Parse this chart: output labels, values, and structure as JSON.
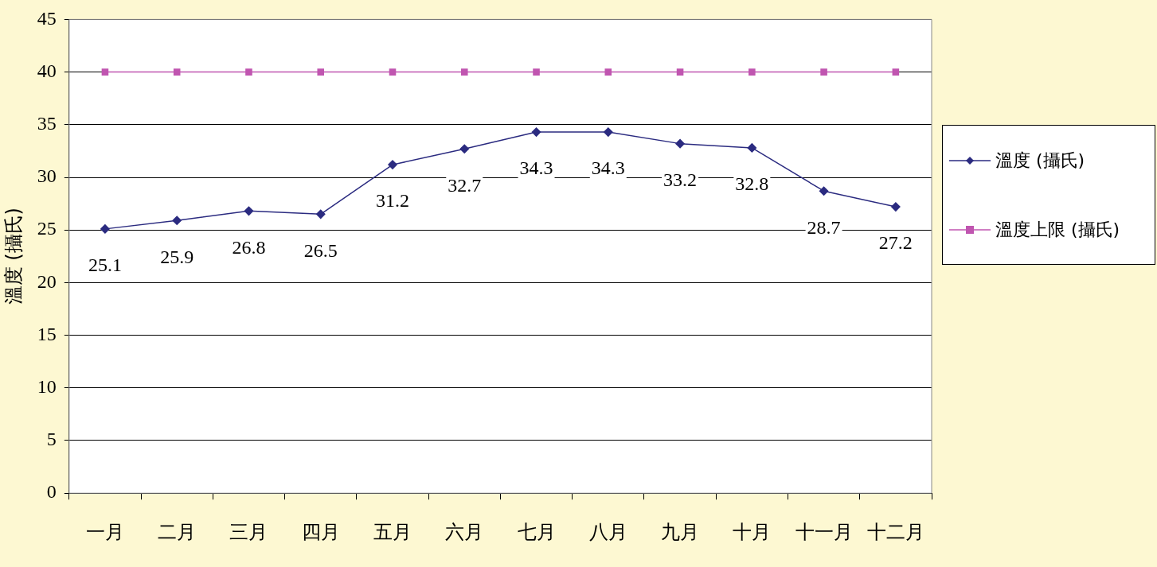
{
  "chart_data": {
    "type": "line",
    "ylabel": "溫度 (攝氏)",
    "categories": [
      "一月",
      "二月",
      "三月",
      "四月",
      "五月",
      "六月",
      "七月",
      "八月",
      "九月",
      "十月",
      "十一月",
      "十二月"
    ],
    "series": [
      {
        "name": "溫度 (攝氏)",
        "color": "#2b2b80",
        "values": [
          25.1,
          25.9,
          26.8,
          26.5,
          31.2,
          32.7,
          34.3,
          34.3,
          33.2,
          32.8,
          28.7,
          27.2
        ],
        "marker": "diamond",
        "value_labels": [
          "25.1",
          "25.9",
          "26.8",
          "26.5",
          "31.2",
          "32.7",
          "34.3",
          "34.3",
          "33.2",
          "32.8",
          "28.7",
          "27.2"
        ]
      },
      {
        "name": "溫度上限 (攝氏)",
        "color": "#c055b0",
        "values": [
          40,
          40,
          40,
          40,
          40,
          40,
          40,
          40,
          40,
          40,
          40,
          40
        ],
        "marker": "square"
      }
    ],
    "ylim": [
      0,
      45
    ],
    "yticks": [
      0,
      5,
      10,
      15,
      20,
      25,
      30,
      35,
      40,
      45
    ],
    "grid": "y",
    "legend": "right",
    "line_style": "solid"
  }
}
